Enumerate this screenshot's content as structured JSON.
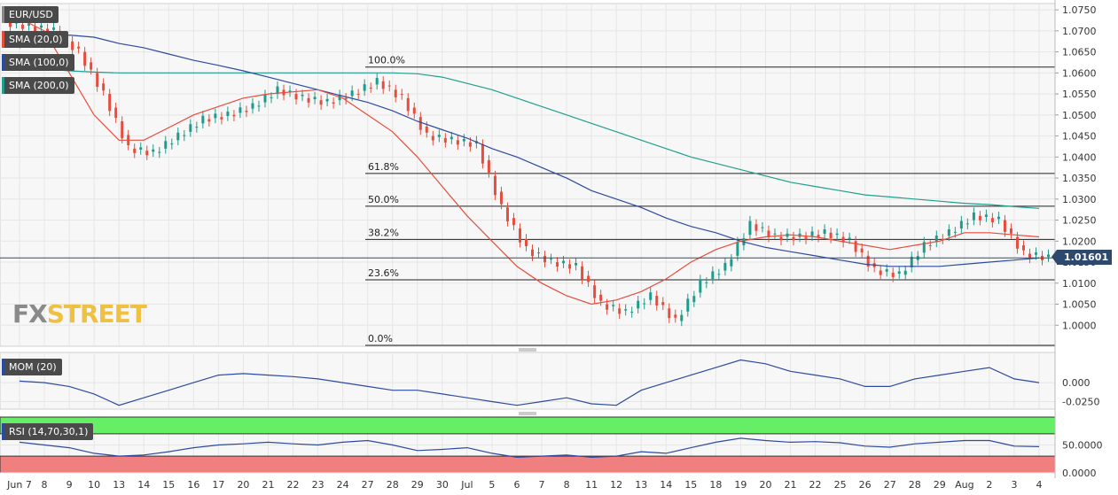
{
  "symbol": "EUR/USD",
  "indicators_main": [
    {
      "label": "SMA (20,0)",
      "color": "#e74c3c"
    },
    {
      "label": "SMA (100,0)",
      "color": "#2c4aa0"
    },
    {
      "label": "SMA (200,0)",
      "color": "#1ea08c"
    }
  ],
  "current_price": "1.01601",
  "logo": {
    "part1": "FX",
    "part2": "STREET"
  },
  "price_axis": {
    "labels": [
      "1.0750",
      "1.0700",
      "1.0650",
      "1.0600",
      "1.0550",
      "1.0500",
      "1.0450",
      "1.0400",
      "1.0350",
      "1.0300",
      "1.0250",
      "1.0200",
      "1.0150",
      "1.0100",
      "1.0050",
      "1.0000"
    ],
    "min": 0.995,
    "max": 1.0765
  },
  "fibonacci": [
    {
      "label": "100.0%",
      "price": 1.0614
    },
    {
      "label": "61.8%",
      "price": 1.0361
    },
    {
      "label": "50.0%",
      "price": 1.0283
    },
    {
      "label": "38.2%",
      "price": 1.0204
    },
    {
      "label": "23.6%",
      "price": 1.0108
    },
    {
      "label": "0.0%",
      "price": 0.9952
    }
  ],
  "date_axis": [
    "Jun 7",
    "8",
    "9",
    "10",
    "13",
    "14",
    "15",
    "16",
    "17",
    "20",
    "21",
    "22",
    "23",
    "24",
    "27",
    "28",
    "29",
    "30",
    "Jul",
    "5",
    "6",
    "7",
    "8",
    "11",
    "12",
    "13",
    "14",
    "15",
    "18",
    "19",
    "20",
    "21",
    "22",
    "25",
    "26",
    "27",
    "28",
    "29",
    "Aug",
    "2",
    "3",
    "4"
  ],
  "mom": {
    "label": "MOM (20)",
    "axis_labels": [
      "0.000",
      "-0.0250"
    ],
    "color": "#2c4aa0"
  },
  "rsi": {
    "label": "RSI (14,70,30,1)",
    "axis_labels": [
      "50.0000",
      "0.0000"
    ],
    "color": "#2c4aa0",
    "overbought": 70,
    "oversold": 30
  },
  "colors": {
    "bull": "#1e9b8a",
    "bear": "#e74c3c",
    "grid": "#e6e6e6",
    "rsi_high": "#66ee66",
    "rsi_low": "#f08080"
  },
  "chart_data": {
    "type": "candlestick",
    "x": [
      "Jun 7",
      "8",
      "9",
      "10",
      "13",
      "14",
      "15",
      "16",
      "17",
      "20",
      "21",
      "22",
      "23",
      "24",
      "27",
      "28",
      "29",
      "30",
      "Jul",
      "5",
      "6",
      "7",
      "8",
      "11",
      "12",
      "13",
      "14",
      "15",
      "18",
      "19",
      "20",
      "21",
      "22",
      "25",
      "26",
      "27",
      "28",
      "29",
      "Aug",
      "2",
      "3",
      "4"
    ],
    "close": [
      1.071,
      1.07,
      1.065,
      1.055,
      1.042,
      1.041,
      1.045,
      1.049,
      1.05,
      1.052,
      1.056,
      1.054,
      1.053,
      1.055,
      1.058,
      1.054,
      1.045,
      1.044,
      1.043,
      1.028,
      1.018,
      1.015,
      1.014,
      1.005,
      1.003,
      1.007,
      1.001,
      1.01,
      1.014,
      1.024,
      1.021,
      1.021,
      1.022,
      1.02,
      1.013,
      1.012,
      1.019,
      1.022,
      1.026,
      1.025,
      1.017,
      1.016
    ],
    "sma20": [
      1.073,
      1.07,
      1.06,
      1.05,
      1.044,
      1.044,
      1.047,
      1.05,
      1.052,
      1.054,
      1.055,
      1.0555,
      1.056,
      1.054,
      1.05,
      1.046,
      1.04,
      1.033,
      1.026,
      1.02,
      1.014,
      1.01,
      1.007,
      1.005,
      1.006,
      1.008,
      1.011,
      1.015,
      1.018,
      1.02,
      1.021,
      1.0215,
      1.021,
      1.02,
      1.019,
      1.018,
      1.019,
      1.02,
      1.022,
      1.022,
      1.0215,
      1.021
    ],
    "sma100": [
      1.066,
      1.068,
      1.069,
      1.0685,
      1.067,
      1.066,
      1.0645,
      1.063,
      1.0618,
      1.0605,
      1.059,
      1.0575,
      1.056,
      1.0545,
      1.053,
      1.051,
      1.0485,
      1.0465,
      1.0445,
      1.042,
      1.04,
      1.0375,
      1.035,
      1.032,
      1.03,
      1.028,
      1.0255,
      1.0235,
      1.022,
      1.02,
      1.0185,
      1.0175,
      1.0165,
      1.0155,
      1.0145,
      1.014,
      1.014,
      1.014,
      1.0145,
      1.015,
      1.0155,
      1.016
    ],
    "sma200": [
      1.062,
      1.061,
      1.0605,
      1.0602,
      1.06,
      1.06,
      1.06,
      1.06,
      1.06,
      1.06,
      1.06,
      1.06,
      1.06,
      1.06,
      1.06,
      1.06,
      1.0598,
      1.059,
      1.0575,
      1.056,
      1.054,
      1.052,
      1.05,
      1.048,
      1.046,
      1.044,
      1.042,
      1.04,
      1.0385,
      1.037,
      1.0355,
      1.034,
      1.033,
      1.032,
      1.031,
      1.0305,
      1.03,
      1.0295,
      1.029,
      1.0287,
      1.0282,
      1.0278
    ],
    "mom": [
      0.002,
      0.0,
      -0.005,
      -0.015,
      -0.03,
      -0.02,
      -0.01,
      0.0,
      0.01,
      0.012,
      0.01,
      0.008,
      0.005,
      0.0,
      -0.005,
      -0.01,
      -0.01,
      -0.015,
      -0.02,
      -0.025,
      -0.03,
      -0.025,
      -0.02,
      -0.028,
      -0.03,
      -0.01,
      0.0,
      0.01,
      0.02,
      0.03,
      0.025,
      0.015,
      0.01,
      0.005,
      -0.005,
      -0.005,
      0.005,
      0.01,
      0.015,
      0.02,
      0.005,
      0.0
    ],
    "rsi": [
      55,
      50,
      45,
      35,
      30,
      32,
      38,
      45,
      50,
      52,
      55,
      52,
      50,
      55,
      58,
      50,
      40,
      42,
      45,
      35,
      28,
      30,
      32,
      28,
      30,
      38,
      35,
      45,
      55,
      62,
      58,
      55,
      56,
      54,
      48,
      46,
      52,
      55,
      58,
      58,
      48,
      47
    ],
    "ylim": [
      0.995,
      1.0765
    ]
  }
}
